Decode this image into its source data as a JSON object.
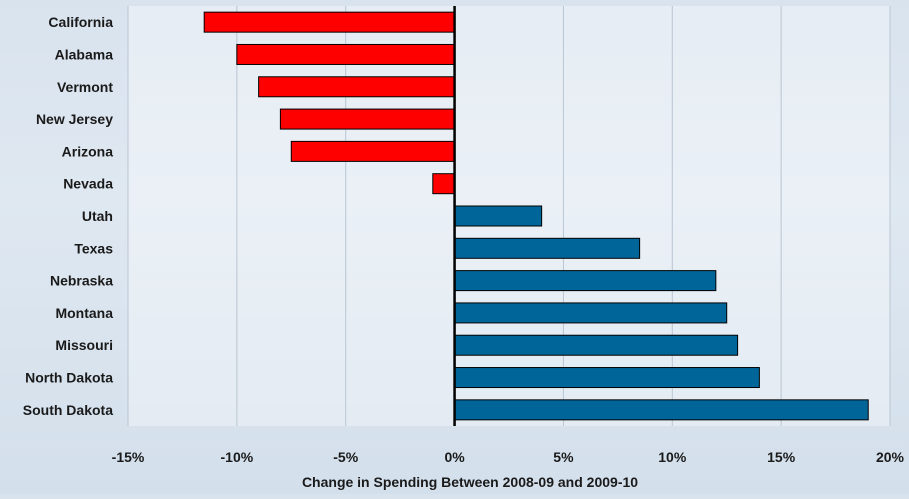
{
  "chart_data": {
    "type": "bar",
    "orientation": "horizontal",
    "categories": [
      "California",
      "Alabama",
      "Vermont",
      "New Jersey",
      "Arizona",
      "Nevada",
      "Utah",
      "Texas",
      "Nebraska",
      "Montana",
      "Missouri",
      "North Dakota",
      "South Dakota"
    ],
    "values": [
      -11.5,
      -10.0,
      -9.0,
      -8.0,
      -7.5,
      -1.0,
      4.0,
      8.5,
      12.0,
      12.5,
      13.0,
      14.0,
      19.0
    ],
    "xlabel": "Change in Spending Between 2008-09 and 2009-10",
    "xlim": [
      -15,
      20
    ],
    "xticks": [
      -15,
      -10,
      -5,
      0,
      5,
      10,
      15,
      20
    ],
    "xtick_labels": [
      "-15%",
      "-10%",
      "-5%",
      "0%",
      "5%",
      "10%",
      "15%",
      "20%"
    ],
    "grid": "vertical",
    "colors": {
      "negative": "#ff0000",
      "positive": "#006699",
      "zero_line": "#000000",
      "grid": "#b9c6d3"
    }
  }
}
